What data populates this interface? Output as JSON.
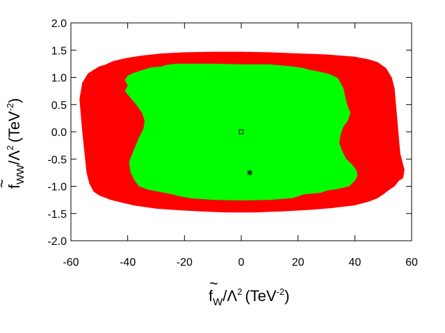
{
  "chart_data": {
    "type": "area",
    "title": "",
    "xlabel": {
      "base": "f",
      "sub": "W",
      "mid": "/Λ",
      "sup1": "2",
      "unit": "(TeV",
      "sup2": "-2",
      "close": ")"
    },
    "ylabel": {
      "base": "f",
      "sub": "WW",
      "mid": "/Λ",
      "sup1": "2",
      "unit": "(TeV",
      "sup2": "-2",
      "close": ")"
    },
    "xlim": [
      -60,
      60
    ],
    "ylim": [
      -2.0,
      2.0
    ],
    "xticks": [
      -60,
      -40,
      -20,
      0,
      20,
      40,
      60
    ],
    "yticks": [
      2.0,
      1.5,
      1.0,
      0.5,
      0.0,
      -0.5,
      -1.0,
      -1.5,
      -2.0
    ],
    "ytick_labels": [
      "2.0",
      "1.5",
      "1.0",
      "0.5",
      "0.0",
      "-0.5",
      "-1.0",
      "-1.5",
      "-2.0"
    ],
    "grid": false,
    "regions": [
      {
        "color": "#ff0000",
        "points": [
          [
            -57,
            0.6
          ],
          [
            -56,
            0.9
          ],
          [
            -54,
            1.07
          ],
          [
            -52,
            1.14
          ],
          [
            -50,
            1.2
          ],
          [
            -48,
            1.23
          ],
          [
            -45,
            1.3
          ],
          [
            -40,
            1.36
          ],
          [
            -35,
            1.4
          ],
          [
            -28,
            1.44
          ],
          [
            -20,
            1.46
          ],
          [
            -10,
            1.47
          ],
          [
            0,
            1.47
          ],
          [
            10,
            1.46
          ],
          [
            20,
            1.44
          ],
          [
            30,
            1.42
          ],
          [
            40,
            1.38
          ],
          [
            45,
            1.33
          ],
          [
            48,
            1.28
          ],
          [
            51,
            1.17
          ],
          [
            53,
            1.0
          ],
          [
            54,
            0.8
          ],
          [
            54.5,
            0.5
          ],
          [
            55,
            0.2
          ],
          [
            55.5,
            -0.1
          ],
          [
            56,
            -0.4
          ],
          [
            57,
            -0.6
          ],
          [
            57.5,
            -0.7
          ],
          [
            57,
            -0.85
          ],
          [
            55.5,
            -0.9
          ],
          [
            54,
            -1.0
          ],
          [
            52,
            -1.07
          ],
          [
            50,
            -1.15
          ],
          [
            48,
            -1.22
          ],
          [
            45,
            -1.28
          ],
          [
            40,
            -1.35
          ],
          [
            32,
            -1.4
          ],
          [
            25,
            -1.43
          ],
          [
            15,
            -1.46
          ],
          [
            5,
            -1.48
          ],
          [
            -5,
            -1.48
          ],
          [
            -15,
            -1.46
          ],
          [
            -22,
            -1.44
          ],
          [
            -30,
            -1.41
          ],
          [
            -38,
            -1.35
          ],
          [
            -42,
            -1.3
          ],
          [
            -46,
            -1.25
          ],
          [
            -50,
            -1.17
          ],
          [
            -52,
            -1.1
          ],
          [
            -53.5,
            -0.95
          ],
          [
            -54.5,
            -0.75
          ],
          [
            -55,
            -0.5
          ],
          [
            -55.5,
            -0.25
          ],
          [
            -56,
            0.0
          ],
          [
            -56.5,
            0.3
          ]
        ]
      },
      {
        "color": "#00ff00",
        "points": [
          [
            -41,
            0.75
          ],
          [
            -40,
            0.85
          ],
          [
            -41,
            0.95
          ],
          [
            -40,
            1.03
          ],
          [
            -38,
            1.08
          ],
          [
            -35,
            1.13
          ],
          [
            -32,
            1.18
          ],
          [
            -28,
            1.2
          ],
          [
            -26,
            1.23
          ],
          [
            -23,
            1.25
          ],
          [
            -20,
            1.25
          ],
          [
            -10,
            1.25
          ],
          [
            0,
            1.24
          ],
          [
            10,
            1.24
          ],
          [
            18,
            1.2
          ],
          [
            22,
            1.17
          ],
          [
            24,
            1.14
          ],
          [
            28,
            1.1
          ],
          [
            31,
            1.06
          ],
          [
            34,
            0.99
          ],
          [
            36,
            0.8
          ],
          [
            37,
            0.55
          ],
          [
            38,
            0.4
          ],
          [
            38.5,
            0.35
          ],
          [
            37.5,
            0.2
          ],
          [
            36,
            0.1
          ],
          [
            35,
            -0.05
          ],
          [
            34.5,
            -0.2
          ],
          [
            35.5,
            -0.35
          ],
          [
            37,
            -0.5
          ],
          [
            39,
            -0.6
          ],
          [
            40.5,
            -0.7
          ],
          [
            41,
            -0.8
          ],
          [
            40,
            -0.9
          ],
          [
            38,
            -1.0
          ],
          [
            34,
            -1.05
          ],
          [
            30,
            -1.08
          ],
          [
            28,
            -1.12
          ],
          [
            22,
            -1.15
          ],
          [
            18,
            -1.22
          ],
          [
            10,
            -1.25
          ],
          [
            0,
            -1.26
          ],
          [
            -10,
            -1.25
          ],
          [
            -18,
            -1.22
          ],
          [
            -22,
            -1.18
          ],
          [
            -25,
            -1.14
          ],
          [
            -29,
            -1.1
          ],
          [
            -33,
            -1.06
          ],
          [
            -36,
            -1.0
          ],
          [
            -37.5,
            -0.9
          ],
          [
            -39,
            -0.75
          ],
          [
            -39.5,
            -0.55
          ],
          [
            -38,
            -0.35
          ],
          [
            -36,
            -0.1
          ],
          [
            -34.5,
            0.05
          ],
          [
            -34,
            0.2
          ],
          [
            -35,
            0.35
          ],
          [
            -37,
            0.5
          ],
          [
            -39,
            0.62
          ]
        ]
      }
    ],
    "markers": [
      {
        "shape": "square",
        "x": 0,
        "y": 0
      },
      {
        "shape": "star",
        "x": 3,
        "y": -0.75
      }
    ]
  }
}
